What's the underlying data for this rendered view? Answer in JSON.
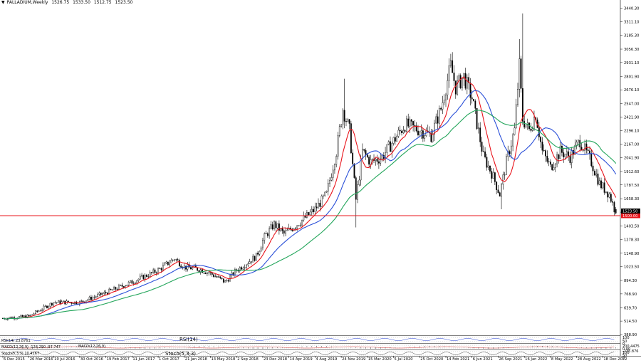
{
  "header": {
    "symbol_label": "PALLADIUM,Weekly",
    "open": "1526.75",
    "high": "1533.50",
    "low": "1512.75",
    "close": "1523.50"
  },
  "colors": {
    "background": "#ffffff",
    "bull_candle": "#ffffff",
    "bear_candle": "#000000",
    "candle_outline": "#000000",
    "ma_fast": "#e8141b",
    "ma_mid": "#2b50d8",
    "ma_slow": "#22a55a",
    "support_line": "#e8141b",
    "grid": "#c8c8c8"
  },
  "indicators": {
    "rsi_label": "RSI(14) 23.8761",
    "rsi_title": "RSI(14)",
    "macd_label": "MACD(12,26,9) -128.290 -97.747",
    "macd_title": "MACD(12,26,9)",
    "stoch_label": "Stoch(5,3,3) 10.4167",
    "stoch_title": "Stoch(5,3,3)",
    "scale_labels": [
      "100",
      "50",
      "0",
      "200.4475",
      "0.00",
      "-235.876",
      "100",
      "50",
      "0"
    ]
  },
  "chart_data": {
    "type": "candlestick",
    "title": "PALLADIUM,Weekly",
    "ylim": [
      388.9,
      3488.9
    ],
    "y_ticks": [
      3440.3,
      3311.1,
      3185.3,
      3056.3,
      2931.1,
      2801.9,
      2676.1,
      2547.0,
      2421.9,
      2296.1,
      2167.0,
      2041.9,
      1912.6,
      1787.5,
      1658.3,
      1532.5,
      1403.5,
      1278.3,
      1148.9,
      1023.5,
      894.3,
      768.9,
      639.7,
      514.5,
      388.9
    ],
    "y_tick_labels": [
      "3440.30",
      "3311.10",
      "3185.30",
      "3056.30",
      "2931.10",
      "2801.90",
      "2676.10",
      "2547.00",
      "2421.90",
      "2296.10",
      "2167.00",
      "2041.90",
      "1912.60",
      "1787.50",
      "1658.30",
      "1532.50",
      "1403.50",
      "1278.30",
      "1148.90",
      "1023.50",
      "894.30",
      "768.90",
      "639.70",
      "514.50",
      "388.90"
    ],
    "x_ticks": [
      {
        "label": "6 Dec 2015",
        "week": 0
      },
      {
        "label": "26 Mar 2016",
        "week": 16
      },
      {
        "label": "10 Jul 2016",
        "week": 31
      },
      {
        "label": "30 Oct 2016",
        "week": 47
      },
      {
        "label": "19 Feb 2017",
        "week": 63
      },
      {
        "label": "11 Jun 2017",
        "week": 79
      },
      {
        "label": "1 Oct 2017",
        "week": 95
      },
      {
        "label": "21 Jan 2018",
        "week": 111
      },
      {
        "label": "13 May 2018",
        "week": 127
      },
      {
        "label": "2 Sep 2018",
        "week": 143
      },
      {
        "label": "23 Dec 2018",
        "week": 159
      },
      {
        "label": "14 Apr 2019",
        "week": 175
      },
      {
        "label": "4 Aug 2019",
        "week": 191
      },
      {
        "label": "24 Nov 2019",
        "week": 207
      },
      {
        "label": "15 Mar 2020",
        "week": 223
      },
      {
        "label": "5 Jul 2020",
        "week": 239
      },
      {
        "label": "25 Oct 2020",
        "week": 255
      },
      {
        "label": "14 Feb 2021",
        "week": 271
      },
      {
        "label": "6 Jun 2021",
        "week": 287
      },
      {
        "label": "26 Sep 2021",
        "week": 303
      },
      {
        "label": "16 Jan 2022",
        "week": 319
      },
      {
        "label": "8 May 2022",
        "week": 335
      },
      {
        "label": "28 Aug 2022",
        "week": 351
      },
      {
        "label": "18 Dec 2022",
        "week": 367
      }
    ],
    "n_weeks": 376,
    "price_path": [
      [
        0,
        540
      ],
      [
        16,
        560
      ],
      [
        31,
        690
      ],
      [
        47,
        690
      ],
      [
        63,
        780
      ],
      [
        79,
        880
      ],
      [
        95,
        990
      ],
      [
        105,
        1100
      ],
      [
        111,
        1020
      ],
      [
        120,
        1000
      ],
      [
        127,
        960
      ],
      [
        136,
        880
      ],
      [
        143,
        990
      ],
      [
        155,
        1120
      ],
      [
        160,
        1300
      ],
      [
        166,
        1420
      ],
      [
        172,
        1330
      ],
      [
        180,
        1420
      ],
      [
        191,
        1560
      ],
      [
        198,
        1700
      ],
      [
        204,
        2100
      ],
      [
        208,
        2500
      ],
      [
        212,
        2300
      ],
      [
        216,
        1650
      ],
      [
        220,
        2100
      ],
      [
        225,
        2000
      ],
      [
        232,
        2050
      ],
      [
        239,
        2200
      ],
      [
        246,
        2350
      ],
      [
        255,
        2300
      ],
      [
        262,
        2250
      ],
      [
        268,
        2500
      ],
      [
        274,
        2900
      ],
      [
        277,
        2700
      ],
      [
        282,
        2800
      ],
      [
        287,
        2600
      ],
      [
        294,
        2050
      ],
      [
        299,
        1900
      ],
      [
        304,
        1700
      ],
      [
        308,
        2000
      ],
      [
        313,
        2300
      ],
      [
        316,
        2900
      ],
      [
        318,
        2400
      ],
      [
        322,
        2300
      ],
      [
        326,
        2450
      ],
      [
        330,
        2100
      ],
      [
        335,
        1950
      ],
      [
        341,
        2100
      ],
      [
        347,
        2050
      ],
      [
        353,
        2200
      ],
      [
        360,
        2000
      ],
      [
        365,
        1800
      ],
      [
        371,
        1700
      ],
      [
        375,
        1523
      ]
    ],
    "spikes": [
      {
        "week": 209,
        "high": 2780
      },
      {
        "week": 216,
        "low": 1390
      },
      {
        "week": 305,
        "low": 1560
      },
      {
        "week": 318,
        "high": 3390
      },
      {
        "week": 316,
        "high": 3150
      }
    ],
    "last_close": 1523.5,
    "horizontal_line": {
      "value": 1500.0,
      "label": "1500.00"
    },
    "price_tag": "1523.50",
    "moving_averages": [
      {
        "period": 10,
        "color_key": "ma_fast"
      },
      {
        "period": 25,
        "color_key": "ma_mid"
      },
      {
        "period": 50,
        "color_key": "ma_slow"
      }
    ],
    "grid": false,
    "legend": "none"
  }
}
